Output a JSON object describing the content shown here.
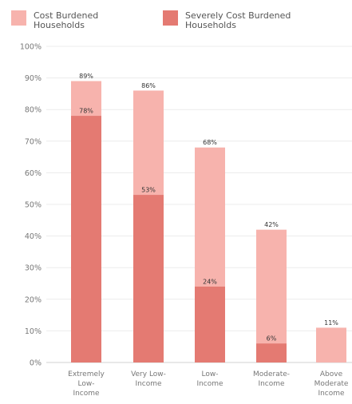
{
  "chart_data": {
    "type": "bar",
    "layout": "overlapping",
    "categories": [
      [
        "Extremely",
        "Low-",
        "Income"
      ],
      [
        "Very Low-",
        "Income"
      ],
      [
        "Low-",
        "Income"
      ],
      [
        "Moderate-",
        "Income"
      ],
      [
        "Above",
        "Moderate",
        "Income"
      ]
    ],
    "series": [
      {
        "name": [
          "Cost Burdened",
          "Households"
        ],
        "color": "#f7b3ad",
        "values": [
          89,
          86,
          68,
          42,
          11
        ],
        "value_labels": [
          "89%",
          "86%",
          "68%",
          "42%",
          "11%"
        ]
      },
      {
        "name": [
          "Severely Cost Burdened",
          "Households"
        ],
        "color": "#e47a72",
        "values": [
          78,
          53,
          24,
          6,
          null
        ],
        "value_labels": [
          "78%",
          "53%",
          "24%",
          "6%",
          null
        ]
      }
    ],
    "ylim": [
      0,
      100
    ],
    "yticks": [
      0,
      10,
      20,
      30,
      40,
      50,
      60,
      70,
      80,
      90,
      100
    ],
    "ytick_labels": [
      "0%",
      "10%",
      "20%",
      "30%",
      "40%",
      "50%",
      "60%",
      "70%",
      "80%",
      "90%",
      "100%"
    ],
    "legend_position": "top",
    "grid": true
  }
}
